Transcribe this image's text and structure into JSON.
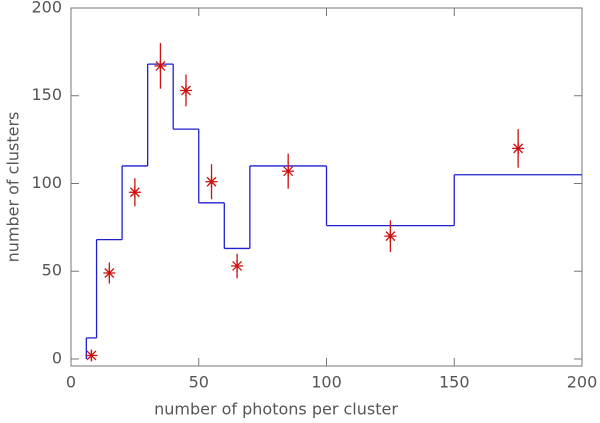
{
  "chart_data": [
    {
      "type": "histogram",
      "xlabel": "number of photons per cluster",
      "ylabel": "number of clusters",
      "bins": [
        6,
        10,
        20,
        30,
        40,
        50,
        60,
        70,
        100,
        150,
        200
      ],
      "values": [
        12,
        68,
        110,
        168,
        131,
        89,
        63,
        110,
        76,
        105
      ],
      "color": "#1f1fd0",
      "xlim": [
        0,
        200
      ],
      "ylim": [
        -4,
        200
      ],
      "xticks": [
        0,
        50,
        100,
        150,
        200
      ],
      "yticks": [
        0,
        50,
        100,
        150,
        200
      ]
    },
    {
      "type": "scatter",
      "x": [
        8,
        15,
        25,
        35,
        45,
        55,
        65,
        85,
        125,
        175
      ],
      "values": [
        2,
        49,
        95,
        167,
        153,
        101,
        53,
        107,
        70,
        120
      ],
      "errors": [
        3,
        6,
        8,
        13,
        9,
        10,
        7,
        10,
        9,
        11
      ],
      "color": "#cc1111"
    }
  ]
}
